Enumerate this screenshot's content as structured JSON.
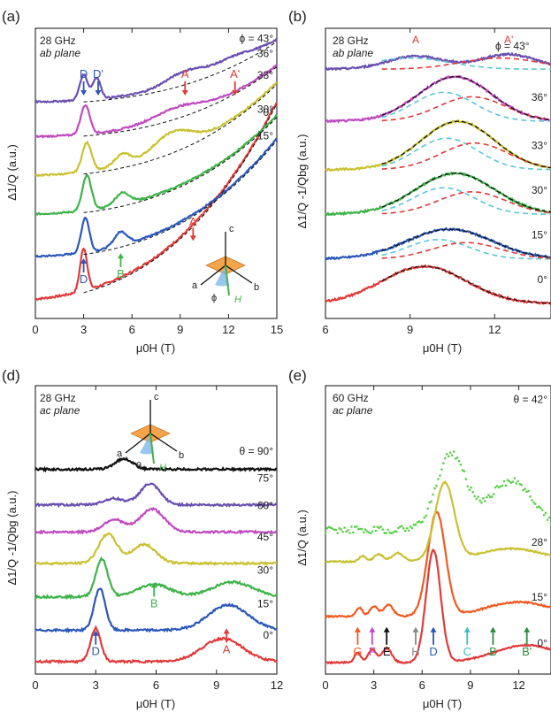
{
  "figure": {
    "panel_letters": [
      "(a)",
      "(b)",
      "(d)",
      "(e)"
    ],
    "colors": {
      "red": "#e03a3a",
      "blue": "#2b57b8",
      "green": "#3fb34a",
      "yellow": "#c9c234",
      "magenta": "#c04ac0",
      "purple": "#6a4fb0",
      "black": "#111111",
      "orange": "#f05a20",
      "cyan": "#3bbcc6",
      "darkgreen": "#2e8b3e",
      "gray": "#888888",
      "lightgreen": "#5ad04a",
      "dashcyan": "#5cc6d8",
      "dashred": "#e03a3a"
    }
  },
  "chart_data": [
    {
      "id": "a",
      "type": "line",
      "title_lines": [
        "28 GHz",
        "ab plane"
      ],
      "xlabel": "μ0H (T)",
      "ylabel": "Δ1/Q (a.u.)",
      "xlim": [
        0,
        15
      ],
      "xticks": [
        0,
        3,
        6,
        9,
        12,
        15
      ],
      "series": [
        {
          "name": "0°",
          "color": "red",
          "offset": 0,
          "base": [
            0,
            0.6,
            1.9,
            2.6
          ],
          "peaks": [
            [
              3.0,
              1.1,
              0.22
            ]
          ],
          "noise": 0.05
        },
        {
          "name": "15°",
          "color": "blue",
          "offset": 1.1,
          "base": [
            0,
            0.25,
            1.0,
            1.8
          ],
          "peaks": [
            [
              3.1,
              0.9,
              0.25
            ],
            [
              5.3,
              0.35,
              0.4
            ]
          ],
          "noise": 0.04
        },
        {
          "name": "30°",
          "color": "green",
          "offset": 2.2,
          "base": [
            0,
            0.2,
            0.85,
            1.5
          ],
          "peaks": [
            [
              3.2,
              0.9,
              0.28
            ],
            [
              5.4,
              0.3,
              0.45
            ]
          ],
          "noise": 0.04
        },
        {
          "name": "33°",
          "color": "yellow",
          "offset": 3.2,
          "base": [
            0,
            0.2,
            0.8,
            1.4
          ],
          "peaks": [
            [
              3.2,
              0.75,
              0.3
            ],
            [
              5.4,
              0.3,
              0.5
            ],
            [
              8.5,
              0.5,
              1.2
            ]
          ],
          "noise": 0.04
        },
        {
          "name": "36°",
          "color": "magenta",
          "offset": 4.2,
          "base": [
            0,
            0.15,
            0.6,
            1.1
          ],
          "peaks": [
            [
              3.1,
              0.75,
              0.28
            ],
            [
              8.8,
              0.25,
              1.5
            ]
          ],
          "noise": 0.04
        },
        {
          "name": "ϕ = 43°",
          "color": "purple",
          "offset": 5.1,
          "base": [
            0,
            0.1,
            0.5,
            1.0
          ],
          "peaks": [
            [
              3.0,
              0.65,
              0.25
            ],
            [
              3.8,
              0.55,
              0.25
            ],
            [
              9.3,
              0.3,
              1.2
            ],
            [
              12.3,
              0.2,
              1.2
            ]
          ],
          "noise": 0.04
        }
      ],
      "series_labels": [
        "0°",
        "15°",
        "30°",
        "33°",
        "36°",
        "ϕ = 43°"
      ],
      "annotations": [
        {
          "text": "D",
          "x": 3.0,
          "color": "blue",
          "pos": "below"
        },
        {
          "text": "B",
          "x": 5.3,
          "color": "green",
          "pos": "below"
        },
        {
          "text": "A",
          "x": 9.8,
          "color": "red",
          "pos": "above"
        },
        {
          "text": "D",
          "x": 3.0,
          "color": "blue",
          "pos": "top"
        },
        {
          "text": "D'",
          "x": 3.9,
          "color": "blue",
          "pos": "top"
        },
        {
          "text": "A",
          "x": 9.3,
          "color": "red",
          "pos": "top"
        },
        {
          "text": "A'",
          "x": 12.4,
          "color": "red",
          "pos": "top"
        }
      ],
      "inset_axes": [
        "c",
        "a",
        "b",
        "H",
        "ϕ"
      ]
    },
    {
      "id": "b",
      "type": "line",
      "title_lines": [
        "28 GHz",
        "ab plane"
      ],
      "corner_label": "ϕ = 43°",
      "xlabel": "μ0H (T)",
      "ylabel": "Δ1/Q -1/Qbg (a.u.)",
      "xlim": [
        6,
        14
      ],
      "xticks": [
        6,
        9,
        12
      ],
      "series": [
        {
          "name": "0°",
          "color": "red",
          "offset": 0,
          "peaks": [
            [
              9.5,
              1.0,
              1.5
            ]
          ]
        },
        {
          "name": "15°",
          "color": "blue",
          "offset": 1.2,
          "peaks": [
            [
              10.4,
              0.8,
              1.5
            ]
          ]
        },
        {
          "name": "30°",
          "color": "green",
          "offset": 2.4,
          "peaks": [
            [
              10.6,
              1.1,
              1.4
            ]
          ]
        },
        {
          "name": "33°",
          "color": "yellow",
          "offset": 3.6,
          "peaks": [
            [
              10.7,
              1.3,
              1.3
            ]
          ]
        },
        {
          "name": "36°",
          "color": "magenta",
          "offset": 4.9,
          "peaks": [
            [
              10.6,
              1.2,
              1.3
            ]
          ]
        },
        {
          "name": "43°",
          "color": "purple",
          "offset": 6.3,
          "peaks": [
            [
              9.2,
              0.35,
              1.0
            ],
            [
              12.5,
              0.4,
              1.0
            ]
          ]
        }
      ],
      "series_labels": [
        "0°",
        "15°",
        "30°",
        "33°",
        "36°"
      ],
      "top_labels": [
        "A",
        "A'"
      ]
    },
    {
      "id": "d",
      "type": "line",
      "title_lines": [
        "28 GHz",
        "ac plane"
      ],
      "xlabel": "μ0H (T)",
      "ylabel": "Δ1/Q -1/Qbg (a.u.)",
      "xlim": [
        0,
        12
      ],
      "xticks": [
        0,
        3,
        6,
        9,
        12
      ],
      "series": [
        {
          "name": "0°",
          "color": "red",
          "offset": 0,
          "peaks": [
            [
              3.0,
              0.8,
              0.25
            ],
            [
              9.3,
              0.55,
              1.0
            ]
          ]
        },
        {
          "name": "15°",
          "color": "blue",
          "offset": 0.75,
          "peaks": [
            [
              3.2,
              1.0,
              0.28
            ],
            [
              9.6,
              0.6,
              1.0
            ]
          ]
        },
        {
          "name": "30°",
          "color": "green",
          "offset": 1.55,
          "peaks": [
            [
              3.3,
              0.9,
              0.3
            ],
            [
              5.9,
              0.3,
              0.8
            ],
            [
              9.8,
              0.35,
              1.0
            ]
          ]
        },
        {
          "name": "45°",
          "color": "yellow",
          "offset": 2.35,
          "peaks": [
            [
              3.6,
              0.7,
              0.45
            ],
            [
              5.4,
              0.45,
              0.6
            ]
          ]
        },
        {
          "name": "60°",
          "color": "magenta",
          "offset": 3.1,
          "peaks": [
            [
              3.9,
              0.3,
              0.5
            ],
            [
              5.8,
              0.55,
              0.6
            ]
          ]
        },
        {
          "name": "75°",
          "color": "purple",
          "offset": 3.75,
          "peaks": [
            [
              3.9,
              0.15,
              0.5
            ],
            [
              5.7,
              0.5,
              0.5
            ]
          ]
        },
        {
          "name": "θ = 90°",
          "color": "black",
          "offset": 4.6,
          "peaks": [
            [
              4.4,
              0.25,
              0.45
            ]
          ]
        }
      ],
      "series_labels": [
        "0°",
        "15°",
        "30°",
        "45°",
        "60°",
        "75°",
        "θ = 90°"
      ],
      "annotations": [
        {
          "text": "D",
          "x": 3.0,
          "color": "blue"
        },
        {
          "text": "B",
          "x": 5.9,
          "color": "green"
        },
        {
          "text": "A",
          "x": 9.5,
          "color": "red"
        }
      ],
      "inset_axes": [
        "c",
        "a",
        "b",
        "H",
        "θ"
      ]
    },
    {
      "id": "e",
      "type": "line",
      "title_lines": [
        "60 GHz",
        "ac plane"
      ],
      "xlabel": "μ0H (T)",
      "ylabel": "Δ1/Q (a.u.)",
      "xlim": [
        0,
        14
      ],
      "xticks": [
        0,
        3,
        6,
        9,
        12
      ],
      "series": [
        {
          "name": "0°",
          "color": "red",
          "offset": 0,
          "peaks": [
            [
              2.0,
              0.35,
              0.2
            ],
            [
              2.9,
              0.45,
              0.25
            ],
            [
              3.8,
              0.5,
              0.3
            ],
            [
              6.7,
              3.9,
              0.45
            ],
            [
              12.5,
              0.6,
              2.0
            ]
          ]
        },
        {
          "name": "15°",
          "color": "orange",
          "offset": 1.6,
          "peaks": [
            [
              2.1,
              0.3,
              0.2
            ],
            [
              3.0,
              0.35,
              0.25
            ],
            [
              3.9,
              0.4,
              0.3
            ],
            [
              6.9,
              3.6,
              0.55
            ],
            [
              12.0,
              0.5,
              2.0
            ]
          ]
        },
        {
          "name": "28°",
          "color": "yellow",
          "offset": 3.5,
          "peaks": [
            [
              2.3,
              0.2,
              0.2
            ],
            [
              3.3,
              0.25,
              0.3
            ],
            [
              4.5,
              0.3,
              0.35
            ],
            [
              7.4,
              2.7,
              0.6
            ],
            [
              11.5,
              0.45,
              2.0
            ]
          ]
        },
        {
          "name": "θ = 42°",
          "color": "lightgreen",
          "offset": 4.6,
          "peaks": [
            [
              7.8,
              2.6,
              0.9
            ],
            [
              11.5,
              1.7,
              1.4
            ]
          ],
          "noise": 0.25,
          "dotted": true
        }
      ],
      "series_labels": [
        "0°",
        "15°",
        "28°",
        "θ = 42°"
      ],
      "annotations": [
        {
          "text": "G",
          "x": 2.0,
          "color": "orange"
        },
        {
          "text": "F",
          "x": 2.9,
          "color": "magenta"
        },
        {
          "text": "E",
          "x": 3.8,
          "color": "black"
        },
        {
          "text": "D",
          "x": 6.7,
          "color": "blue"
        },
        {
          "text": "C",
          "x": 8.8,
          "color": "cyan"
        },
        {
          "text": "B",
          "x": 10.4,
          "color": "darkgreen"
        },
        {
          "text": "B'",
          "x": 12.5,
          "color": "darkgreen"
        },
        {
          "text": "H",
          "x": 5.6,
          "color": "gray"
        }
      ]
    }
  ]
}
